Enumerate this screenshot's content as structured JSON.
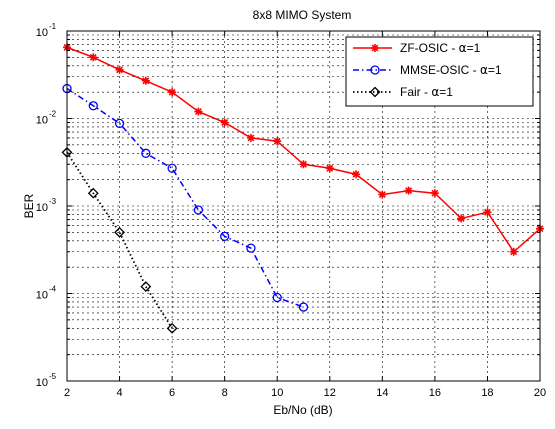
{
  "chart_data": {
    "type": "line",
    "title": "8x8 MIMO System",
    "xlabel": "Eb/No (dB)",
    "ylabel": "BER",
    "xlim": [
      2,
      20
    ],
    "ylim": [
      1e-05,
      0.1
    ],
    "yscale": "log",
    "x_ticks": [
      2,
      4,
      6,
      8,
      10,
      12,
      14,
      16,
      18,
      20
    ],
    "x_tick_labels": [
      "2",
      "4",
      "6",
      "8",
      "10",
      "12",
      "14",
      "16",
      "18",
      "20"
    ],
    "y_ticks": [
      {
        "base": "10",
        "exp": "-1"
      },
      {
        "base": "10",
        "exp": "-2"
      },
      {
        "base": "10",
        "exp": "-3"
      },
      {
        "base": "10",
        "exp": "-4"
      },
      {
        "base": "10",
        "exp": "-5"
      }
    ],
    "grid": true,
    "legend_position": "top-right",
    "series": [
      {
        "name": "ZF-OSIC - ",
        "name_symbol": "α",
        "name_suffix": "=1",
        "color": "#ff0000",
        "dash": "solid",
        "marker": "star",
        "x": [
          2,
          3,
          4,
          5,
          6,
          7,
          8,
          9,
          10,
          11,
          12,
          13,
          14,
          15,
          16,
          17,
          18,
          19,
          20
        ],
        "y": [
          0.065,
          0.05,
          0.036,
          0.027,
          0.02,
          0.012,
          0.009,
          0.006,
          0.0055,
          0.003,
          0.0027,
          0.0023,
          0.00135,
          0.0015,
          0.0014,
          0.00072,
          0.00085,
          0.0003,
          0.00055
        ]
      },
      {
        "name": "MMSE-OSIC - ",
        "name_symbol": "α",
        "name_suffix": "=1",
        "color": "#0000ff",
        "dash": "dashdot",
        "marker": "circle",
        "x": [
          2,
          3,
          4,
          5,
          6,
          7,
          8,
          9,
          10,
          11
        ],
        "y": [
          0.022,
          0.014,
          0.0088,
          0.004,
          0.0027,
          0.0009,
          0.00045,
          0.00033,
          9e-05,
          7e-05
        ]
      },
      {
        "name": "Fair - ",
        "name_symbol": "α",
        "name_suffix": "=1",
        "color": "#000000",
        "dash": "dotted",
        "marker": "diamond",
        "x": [
          2,
          3,
          4,
          5,
          6
        ],
        "y": [
          0.0041,
          0.0014,
          0.0005,
          0.00012,
          4e-05
        ]
      }
    ]
  }
}
